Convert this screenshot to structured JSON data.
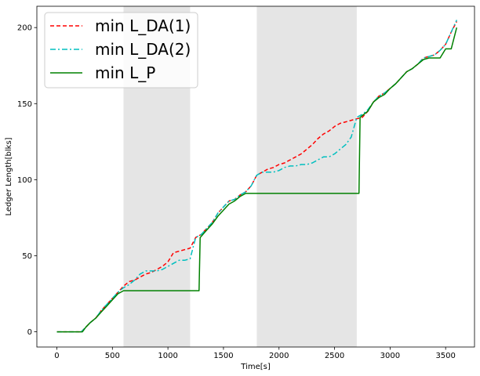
{
  "chart_data": {
    "type": "line",
    "title": "",
    "xlabel": "Time[s]",
    "ylabel": "Ledger Length[blks]",
    "xlim": [
      -180,
      3760
    ],
    "ylim": [
      -10,
      214
    ],
    "xticks": [
      0,
      500,
      1000,
      1500,
      2000,
      2500,
      3000,
      3500
    ],
    "yticks": [
      0,
      50,
      100,
      150,
      200
    ],
    "grid": false,
    "legend_position": "top-left",
    "shaded_intervals": [
      [
        600,
        1200
      ],
      [
        1800,
        2700
      ]
    ],
    "series": [
      {
        "name": "min L_DA(1)",
        "color": "#ff0000",
        "style": "dashed",
        "x": [
          0,
          220,
          260,
          300,
          350,
          400,
          450,
          500,
          550,
          600,
          650,
          700,
          750,
          800,
          850,
          900,
          950,
          1000,
          1050,
          1100,
          1150,
          1200,
          1250,
          1300,
          1350,
          1400,
          1450,
          1500,
          1550,
          1600,
          1650,
          1700,
          1750,
          1800,
          1850,
          1900,
          1950,
          2000,
          2050,
          2100,
          2150,
          2200,
          2250,
          2300,
          2350,
          2400,
          2450,
          2500,
          2550,
          2600,
          2650,
          2700,
          2750,
          2800,
          2850,
          2900,
          2950,
          3000,
          3050,
          3100,
          3150,
          3200,
          3250,
          3300,
          3350,
          3400,
          3450,
          3500,
          3550,
          3600
        ],
        "y": [
          0,
          0,
          3,
          6,
          9,
          14,
          18,
          22,
          26,
          30,
          33,
          34,
          36,
          38,
          39,
          41,
          43,
          46,
          52,
          53,
          54,
          55,
          62,
          64,
          68,
          72,
          78,
          82,
          86,
          87,
          90,
          92,
          96,
          103,
          105,
          107,
          108,
          110,
          111,
          113,
          115,
          117,
          120,
          123,
          127,
          130,
          132,
          135,
          137,
          138,
          139,
          140,
          141,
          145,
          151,
          155,
          157,
          160,
          163,
          167,
          171,
          173,
          176,
          180,
          181,
          182,
          185,
          189,
          197,
          204
        ]
      },
      {
        "name": "min L_DA(2)",
        "color": "#00bfbf",
        "style": "dashdot",
        "x": [
          0,
          220,
          260,
          300,
          350,
          400,
          450,
          500,
          550,
          600,
          650,
          700,
          750,
          800,
          850,
          900,
          950,
          1000,
          1050,
          1100,
          1150,
          1200,
          1250,
          1300,
          1350,
          1400,
          1450,
          1500,
          1550,
          1600,
          1650,
          1700,
          1750,
          1800,
          1850,
          1900,
          1950,
          2000,
          2050,
          2100,
          2150,
          2200,
          2250,
          2300,
          2350,
          2400,
          2450,
          2500,
          2550,
          2600,
          2650,
          2700,
          2750,
          2800,
          2850,
          2900,
          2950,
          3000,
          3050,
          3100,
          3150,
          3200,
          3250,
          3300,
          3350,
          3400,
          3450,
          3500,
          3550,
          3600
        ],
        "y": [
          0,
          0,
          3,
          6,
          9,
          14,
          18,
          22,
          26,
          29,
          31,
          34,
          38,
          40,
          40,
          40,
          41,
          43,
          45,
          47,
          47,
          48,
          62,
          64,
          68,
          72,
          78,
          82,
          86,
          87,
          90,
          92,
          96,
          103,
          105,
          105,
          105,
          106,
          108,
          109,
          109,
          110,
          110,
          111,
          113,
          115,
          115,
          117,
          120,
          123,
          128,
          141,
          143,
          146,
          151,
          155,
          157,
          160,
          163,
          167,
          171,
          173,
          176,
          180,
          181,
          182,
          185,
          189,
          197,
          205
        ]
      },
      {
        "name": "min L_P",
        "color": "#008000",
        "style": "solid",
        "x": [
          0,
          230,
          260,
          300,
          350,
          400,
          450,
          500,
          550,
          600,
          1280,
          1290,
          1350,
          1400,
          1450,
          1500,
          1550,
          1600,
          1650,
          1700,
          1750,
          1800,
          2720,
          2730,
          2800,
          2850,
          2900,
          2950,
          3000,
          3050,
          3100,
          3150,
          3200,
          3250,
          3300,
          3350,
          3400,
          3450,
          3500,
          3550,
          3600
        ],
        "y": [
          0,
          0,
          3,
          6,
          9,
          13,
          17,
          21,
          25,
          27,
          27,
          62,
          67,
          71,
          76,
          80,
          84,
          86,
          89,
          91,
          91,
          91,
          91,
          141,
          145,
          151,
          154,
          156,
          160,
          163,
          167,
          171,
          173,
          176,
          179,
          180,
          180,
          180,
          186,
          186,
          200
        ]
      }
    ]
  }
}
